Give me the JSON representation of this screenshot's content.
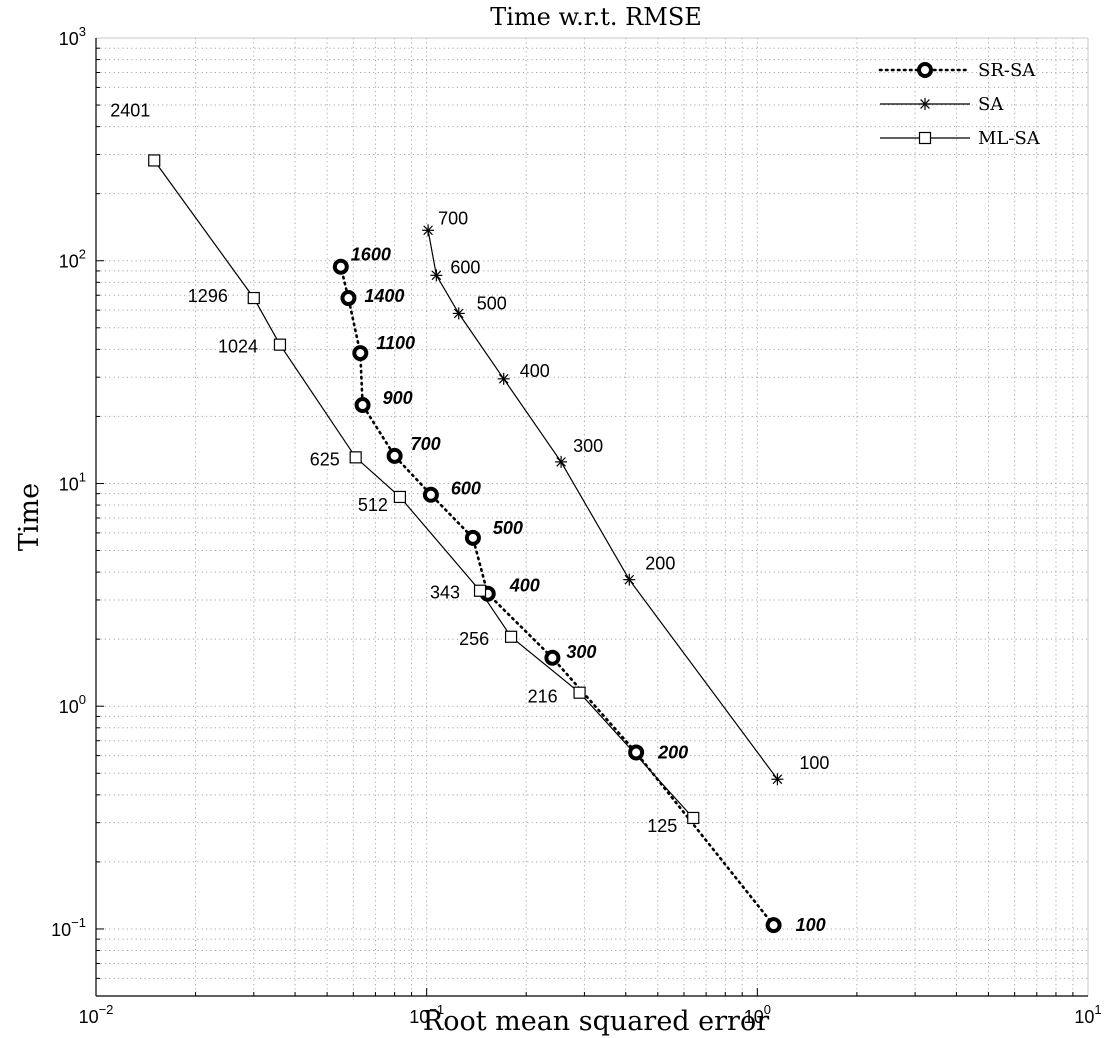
{
  "chart_data": {
    "type": "line",
    "title": "Time w.r.t. RMSE",
    "xlabel": "Root mean squared error",
    "ylabel": "Time",
    "xscale": "log",
    "yscale": "log",
    "xlim": [
      0.01,
      10
    ],
    "ylim": [
      0.05,
      1000
    ],
    "x_ticks": [
      {
        "value": 0.01,
        "base": "10",
        "exp": "−2"
      },
      {
        "value": 0.1,
        "base": "10",
        "exp": "−1"
      },
      {
        "value": 1,
        "base": "10",
        "exp": "0"
      },
      {
        "value": 10,
        "base": "10",
        "exp": "1"
      }
    ],
    "y_ticks": [
      {
        "value": 0.1,
        "base": "10",
        "exp": "−1"
      },
      {
        "value": 1,
        "base": "10",
        "exp": "0"
      },
      {
        "value": 10,
        "base": "10",
        "exp": "1"
      },
      {
        "value": 100,
        "base": "10",
        "exp": "2"
      },
      {
        "value": 1000,
        "base": "10",
        "exp": "3"
      }
    ],
    "grid": true,
    "minor_grid": true,
    "legend_position": "top-right",
    "series": [
      {
        "name": "SR-SA",
        "marker": "circle",
        "line": "dotted",
        "label_style": "bold-italic",
        "points": [
          {
            "x": 1.12,
            "y": 0.104,
            "label": "100"
          },
          {
            "x": 0.43,
            "y": 0.62,
            "label": "200"
          },
          {
            "x": 0.24,
            "y": 1.65,
            "label": "300"
          },
          {
            "x": 0.153,
            "y": 3.2,
            "label": "400"
          },
          {
            "x": 0.138,
            "y": 5.7,
            "label": "500"
          },
          {
            "x": 0.103,
            "y": 8.9,
            "label": "600"
          },
          {
            "x": 0.08,
            "y": 13.3,
            "label": "700"
          },
          {
            "x": 0.064,
            "y": 22.5,
            "label": "900"
          },
          {
            "x": 0.063,
            "y": 38.5,
            "label": "1100"
          },
          {
            "x": 0.058,
            "y": 68.0,
            "label": "1400"
          },
          {
            "x": 0.055,
            "y": 94.0,
            "label": "1600"
          }
        ]
      },
      {
        "name": "SA",
        "marker": "star",
        "line": "solid",
        "label_style": "normal",
        "points": [
          {
            "x": 1.15,
            "y": 0.47,
            "label": "100"
          },
          {
            "x": 0.41,
            "y": 3.7,
            "label": "200"
          },
          {
            "x": 0.255,
            "y": 12.5,
            "label": "300"
          },
          {
            "x": 0.171,
            "y": 29.5,
            "label": "400"
          },
          {
            "x": 0.125,
            "y": 58.0,
            "label": "500"
          },
          {
            "x": 0.107,
            "y": 86.0,
            "label": "600"
          },
          {
            "x": 0.101,
            "y": 137.0,
            "label": "700"
          }
        ]
      },
      {
        "name": "ML-SA",
        "marker": "square",
        "line": "solid",
        "label_style": "normal",
        "points": [
          {
            "x": 0.64,
            "y": 0.315,
            "label": "125"
          },
          {
            "x": 0.29,
            "y": 1.15,
            "label": "216"
          },
          {
            "x": 0.18,
            "y": 2.05,
            "label": "256"
          },
          {
            "x": 0.145,
            "y": 3.3,
            "label": "343"
          },
          {
            "x": 0.083,
            "y": 8.7,
            "label": "512"
          },
          {
            "x": 0.061,
            "y": 13.1,
            "label": "625"
          },
          {
            "x": 0.036,
            "y": 42.0,
            "label": "1024"
          },
          {
            "x": 0.03,
            "y": 68.0,
            "label": "1296"
          },
          {
            "x": 0.015,
            "y": 282.0,
            "label": "2401"
          }
        ]
      }
    ]
  }
}
